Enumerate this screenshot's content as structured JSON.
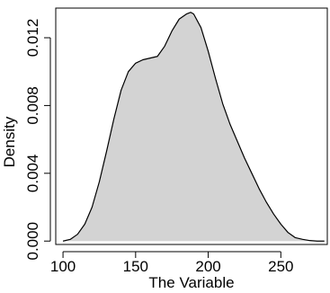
{
  "chart_data": {
    "type": "area",
    "xlabel": "The Variable",
    "ylabel": "Density",
    "xlim": [
      95,
      282
    ],
    "ylim": [
      -0.0002,
      0.01375
    ],
    "x_ticks": [
      100,
      150,
      200,
      250
    ],
    "x_tick_labels": [
      "100",
      "150",
      "200",
      "250"
    ],
    "y_ticks": [
      0.0,
      0.004,
      0.008,
      0.012
    ],
    "y_tick_labels": [
      "0.000",
      "0.004",
      "0.008",
      "0.012"
    ],
    "grid": false,
    "legend": "none",
    "fill_color": "#d3d3d3",
    "line_color": "#000000",
    "series": [
      {
        "x": [
          100,
          105,
          110,
          115,
          120,
          125,
          130,
          135,
          140,
          145,
          150,
          155,
          160,
          165,
          170,
          175,
          180,
          185,
          188,
          190,
          195,
          200,
          205,
          210,
          215,
          220,
          225,
          230,
          235,
          240,
          245,
          250,
          255,
          260,
          265,
          270,
          275,
          280
        ],
        "y": [
          0.0,
          0.0001,
          0.0004,
          0.001,
          0.002,
          0.0035,
          0.0053,
          0.0072,
          0.0089,
          0.01,
          0.0105,
          0.0107,
          0.0108,
          0.0109,
          0.0115,
          0.0124,
          0.0131,
          0.0134,
          0.0135,
          0.0134,
          0.0126,
          0.0112,
          0.0096,
          0.0081,
          0.0069,
          0.0059,
          0.0049,
          0.004,
          0.0031,
          0.0023,
          0.0016,
          0.001,
          0.0005,
          0.0002,
          0.0001,
          3e-05,
          0.0,
          0.0
        ]
      }
    ]
  }
}
